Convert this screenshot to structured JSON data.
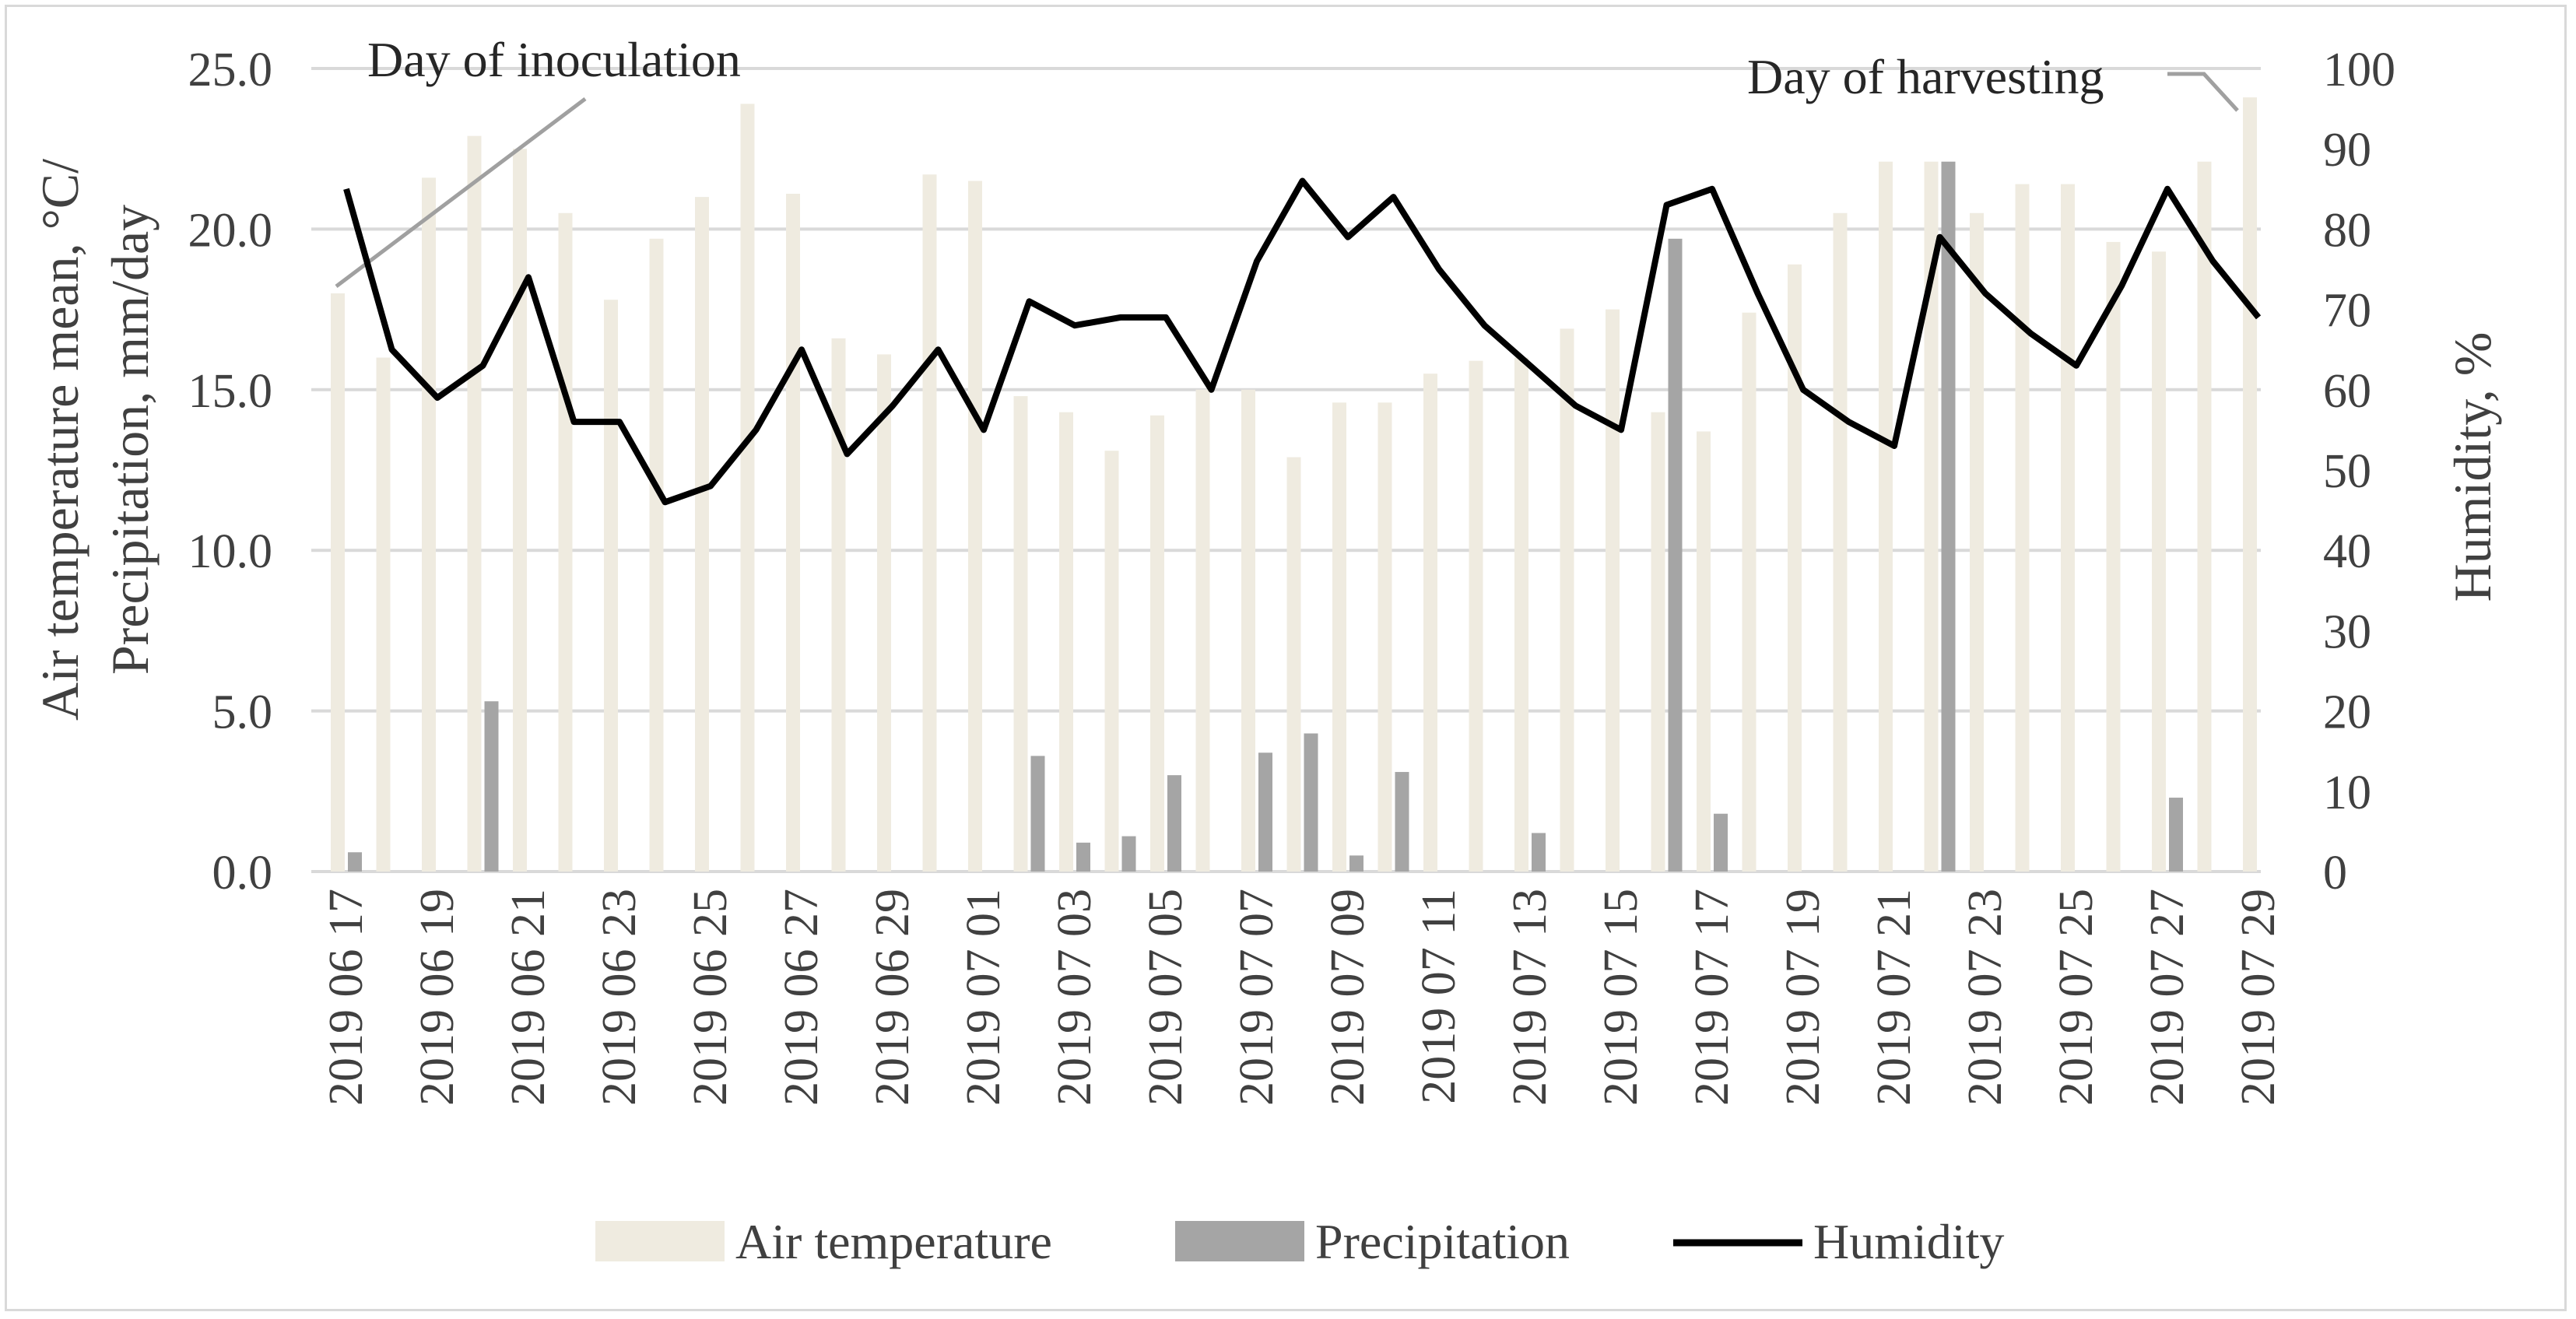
{
  "chart_data": {
    "type": "bar+line",
    "dates": [
      "2019 06 17",
      "2019 06 18",
      "2019 06 19",
      "2019 06 20",
      "2019 06 21",
      "2019 06 22",
      "2019 06 23",
      "2019 06 24",
      "2019 06 25",
      "2019 06 26",
      "2019 06 27",
      "2019 06 28",
      "2019 06 29",
      "2019 06 30",
      "2019 07 01",
      "2019 07 02",
      "2019 07 03",
      "2019 07 04",
      "2019 07 05",
      "2019 07 06",
      "2019 07 07",
      "2019 07 08",
      "2019 07 09",
      "2019 07 10",
      "2019 07 11",
      "2019 07 12",
      "2019 07 13",
      "2019 07 14",
      "2019 07 15",
      "2019 07 16",
      "2019 07 17",
      "2019 07 18",
      "2019 07 19",
      "2019 07 20",
      "2019 07 21",
      "2019 07 22",
      "2019 07 23",
      "2019 07 24",
      "2019 07 25",
      "2019 07 26",
      "2019 07 27",
      "2019 07 28",
      "2019 07 29"
    ],
    "x_tick_labels": [
      "2019 06 17",
      "2019 06 19",
      "2019 06 21",
      "2019 06 23",
      "2019 06 25",
      "2019 06 27",
      "2019 06 29",
      "2019 07 01",
      "2019 07 03",
      "2019 07 05",
      "2019 07 07",
      "2019 07 09",
      "2019 07 11",
      "2019 07 13",
      "2019 07 15",
      "2019 07 17",
      "2019 07 19",
      "2019 07 21",
      "2019 07 23",
      "2019 07 25",
      "2019 07 27",
      "2019 07 29"
    ],
    "series": [
      {
        "name": "Air temperature",
        "axis": "left",
        "kind": "bar",
        "color": "#efebe0",
        "values": [
          18.0,
          16.0,
          21.6,
          22.9,
          22.5,
          20.5,
          17.8,
          19.7,
          21.0,
          23.9,
          21.1,
          16.6,
          16.1,
          21.7,
          21.5,
          14.8,
          14.3,
          13.1,
          14.2,
          15.0,
          15.0,
          12.9,
          14.6,
          14.6,
          15.5,
          15.9,
          16.0,
          16.9,
          17.5,
          14.3,
          13.7,
          17.4,
          18.9,
          20.5,
          22.1,
          22.1,
          20.5,
          21.4,
          21.4,
          19.6,
          19.3,
          22.1,
          24.1
        ]
      },
      {
        "name": "Precipitation",
        "axis": "left",
        "kind": "bar",
        "color": "#a5a5a5",
        "values": [
          0.6,
          0,
          0,
          5.3,
          0,
          0,
          0,
          0,
          0,
          0,
          0,
          0,
          0,
          0,
          0,
          3.6,
          0.9,
          1.1,
          3.0,
          0,
          3.7,
          4.3,
          0.5,
          3.1,
          0,
          0,
          1.2,
          0,
          0,
          19.7,
          1.8,
          0,
          0,
          0,
          0,
          22.1,
          0,
          0,
          0,
          0,
          2.3,
          0,
          0
        ]
      },
      {
        "name": "Humidity",
        "axis": "right",
        "kind": "line",
        "color": "#000000",
        "values": [
          85,
          65,
          59,
          63,
          74,
          56,
          56,
          46,
          48,
          55,
          65,
          52,
          58,
          65,
          55,
          71,
          68,
          69,
          69,
          60,
          76,
          86,
          79,
          84,
          75,
          68,
          63,
          58,
          55,
          83,
          85,
          72,
          60,
          56,
          53,
          79,
          72,
          67,
          63,
          73,
          85,
          76,
          69
        ]
      }
    ],
    "left_axis": {
      "label_line1": "Air temperature mean, °C/",
      "label_line2": "Precipitation, mm/day",
      "ylim": [
        0,
        25
      ],
      "ticks": [
        "0.0",
        "5.0",
        "10.0",
        "15.0",
        "20.0",
        "25.0"
      ]
    },
    "right_axis": {
      "label": "Humidity, %",
      "ylim": [
        0,
        100
      ],
      "ticks": [
        "0",
        "10",
        "20",
        "30",
        "40",
        "50",
        "60",
        "70",
        "80",
        "90",
        "100"
      ]
    },
    "annotations": {
      "inoculation": "Day of inoculation",
      "harvesting": "Day of harvesting"
    },
    "legend": {
      "position": "bottom",
      "items": [
        "Air temperature",
        "Precipitation",
        "Humidity"
      ]
    },
    "grid": true
  }
}
